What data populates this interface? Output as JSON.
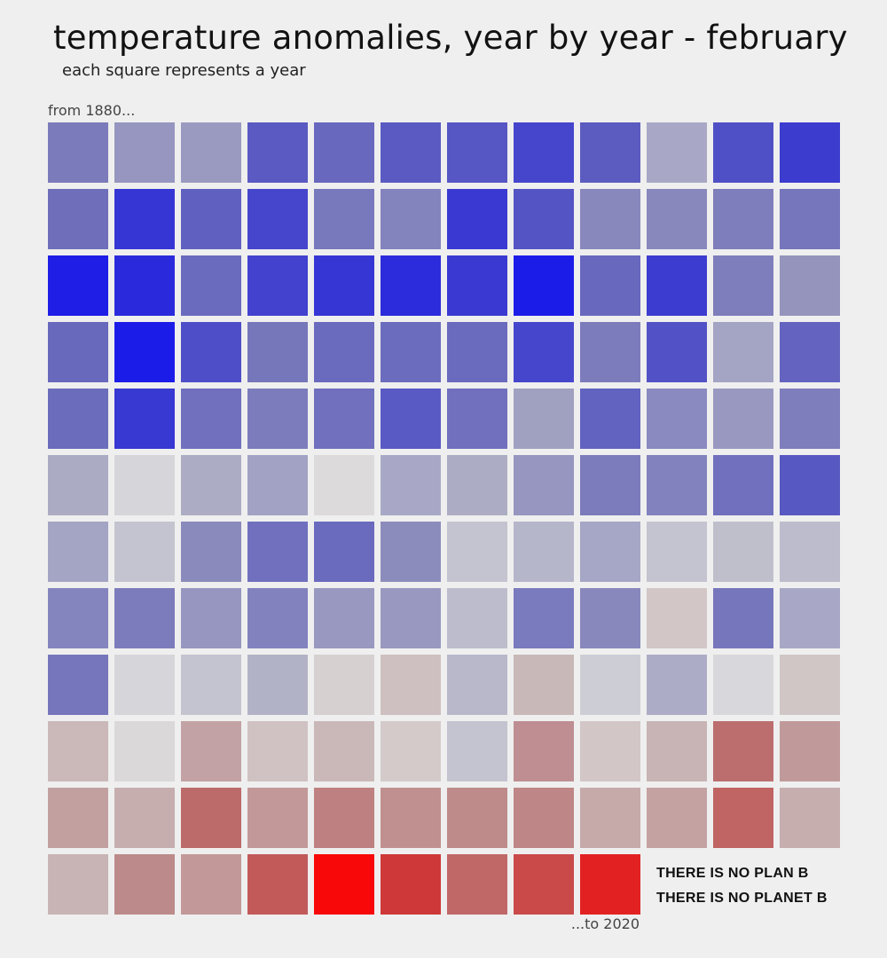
{
  "header": {
    "title": "temperature anomalies, year by year - february",
    "subtitle": "each square represents a year"
  },
  "labels": {
    "start": "from 1880...",
    "end": "...to 2020"
  },
  "slogan": {
    "line1": "THERE IS NO PLAN B",
    "line2": "THERE IS NO PLANET B"
  },
  "chart_data": {
    "type": "heatmap",
    "title": "temperature anomalies, year by year - february",
    "subtitle": "each square represents a year",
    "start_year": 1880,
    "end_year": 2020,
    "columns": 12,
    "color_scale": {
      "cold": "#1a14e8",
      "neutral": "#dcd8d8",
      "warm": "#fa0606"
    },
    "rows": [
      [
        "#7b7bbb",
        "#9696c0",
        "#9a9ac0",
        "#5a5ac2",
        "#6868be",
        "#5a5ac2",
        "#5656c4",
        "#4646cc",
        "#5c5cc0",
        "#a8a8c6",
        "#5050c6",
        "#3c3ccf"
      ],
      [
        "#6e6eba",
        "#3636d4",
        "#6060c0",
        "#4646cc",
        "#7878bc",
        "#8383be",
        "#3a3ad2",
        "#5454c4",
        "#8888bc",
        "#8888bc",
        "#7e7ebc",
        "#7676bc"
      ],
      [
        "#1e1ee6",
        "#2a2adc",
        "#6a6abe",
        "#4242cf",
        "#3636d4",
        "#2c2cdc",
        "#3a3ad2",
        "#1c1ce8",
        "#6868be",
        "#3c3cd0",
        "#7e7ebc",
        "#9494bc"
      ],
      [
        "#6868bc",
        "#1c1ce8",
        "#4e4ec8",
        "#7676ba",
        "#6a6abe",
        "#6c6cbe",
        "#6a6abe",
        "#4646cc",
        "#7c7cbc",
        "#5252c6",
        "#a4a4c4",
        "#6464c0"
      ],
      [
        "#6c6cbc",
        "#3838d2",
        "#7070be",
        "#7c7cbc",
        "#7070be",
        "#5a5ac4",
        "#7070be",
        "#a0a0c0",
        "#6262c0",
        "#8a8ac0",
        "#9898c0",
        "#7e7ebc"
      ],
      [
        "#ababc4",
        "#d6d6da",
        "#acacc4",
        "#a2a2c4",
        "#dcdadb",
        "#a8a8c6",
        "#acacc4",
        "#9696c0",
        "#7c7cbc",
        "#8282be",
        "#7070be",
        "#5858c2"
      ],
      [
        "#a4a4c4",
        "#c4c4d0",
        "#8a8abc",
        "#7070be",
        "#6a6abe",
        "#8c8cbc",
        "#c4c4d0",
        "#b6b6ca",
        "#a6a6c6",
        "#c4c4d0",
        "#bfbfcc",
        "#bcbccc"
      ],
      [
        "#8484be",
        "#7c7cbc",
        "#9696c0",
        "#8282be",
        "#9898c0",
        "#9898c0",
        "#bcbccc",
        "#7a7abe",
        "#8888bc",
        "#d2c6c6",
        "#7676bc",
        "#a8a8c6"
      ],
      [
        "#7676bc",
        "#d6d6da",
        "#c4c4d0",
        "#b2b2c6",
        "#d6d0d0",
        "#cec0c0",
        "#b8b8ca",
        "#c8b8b8",
        "#cdcdd6",
        "#acacc6",
        "#d8d8dc",
        "#d0c6c6"
      ],
      [
        "#cbb8b8",
        "#dad8d8",
        "#c2a2a4",
        "#d0c2c2",
        "#cab8b8",
        "#d4caca",
        "#c4c4d0",
        "#be8e92",
        "#d2c6c6",
        "#c8b4b4",
        "#bc6e6e",
        "#c09a9a"
      ],
      [
        "#c2a0a0",
        "#c6aeae",
        "#bc6a6a",
        "#c29898",
        "#be8080",
        "#c09090",
        "#be8a8a",
        "#be8686",
        "#c6aaaa",
        "#c4a2a2",
        "#c06464",
        "#c6aeae"
      ],
      [
        "#c8b4b4",
        "#bc8a8a",
        "#c29898",
        "#c25a5a",
        "#f80808",
        "#ce3838",
        "#c06868",
        "#ca4a4a",
        "#e22222"
      ]
    ]
  }
}
